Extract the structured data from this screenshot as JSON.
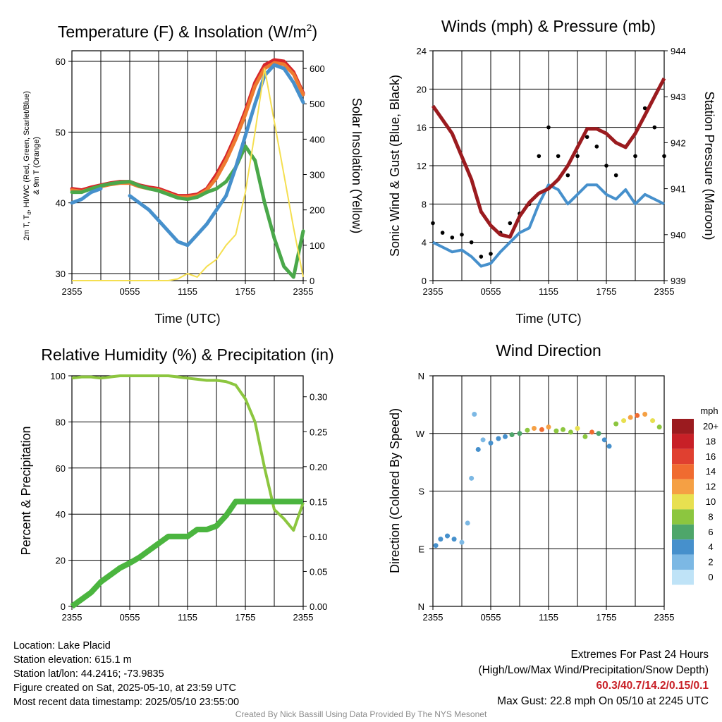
{
  "chart_data": [
    {
      "type": "line",
      "title_html_parts": {
        "main": "Temperature (F) & Insolation (W/m",
        "sup": "2",
        "close": ")"
      },
      "ylabel_left_line1": "2m T, T",
      "ylabel_left_sub": "d",
      "ylabel_left_line1_rest": ", HI/WC (Red, Green, Scarlet/Blue)",
      "ylabel_left_line2": "& 9m T (Orange)",
      "ylabel_right": "Solar Insolation (Yellow)",
      "xlabel": "Time (UTC)",
      "x_ticks": [
        "2355",
        "0555",
        "1155",
        "1755",
        "2355"
      ],
      "ylim": [
        29,
        61.5
      ],
      "yticks_left": [
        30,
        40,
        50,
        60
      ],
      "ylim_right": [
        0,
        650
      ],
      "yticks_right": [
        0,
        100,
        200,
        300,
        400,
        500,
        600
      ],
      "x_hours": [
        0,
        1,
        2,
        3,
        4,
        5,
        6,
        7,
        8,
        9,
        10,
        11,
        12,
        13,
        14,
        15,
        16,
        17,
        18,
        19,
        20,
        21,
        22,
        23,
        24
      ],
      "series": [
        {
          "color": "#d7262b",
          "values": [
            42,
            41.8,
            42.2,
            42.5,
            42.8,
            43,
            43,
            42.5,
            42.2,
            42,
            41.5,
            41,
            41,
            41.2,
            42,
            44,
            46.5,
            49.5,
            53,
            57,
            59.5,
            60.2,
            60,
            58.5,
            55.5
          ]
        },
        {
          "color": "#ee7a30",
          "values": [
            41.8,
            41.6,
            42,
            42.3,
            42.6,
            42.8,
            42.8,
            42.3,
            42,
            41.8,
            41.3,
            40.8,
            40.8,
            41,
            41.8,
            43.5,
            46,
            49,
            52.5,
            56.5,
            59,
            59.8,
            59.6,
            58.2,
            55.3
          ]
        },
        {
          "color": "#4aa84a",
          "values": [
            41.5,
            41.5,
            42,
            42.4,
            42.7,
            42.9,
            43,
            42.4,
            42,
            41.7,
            41.2,
            40.7,
            40.5,
            40.8,
            41.5,
            42,
            43,
            45,
            48,
            46,
            40,
            35,
            31,
            29.5,
            36
          ]
        },
        {
          "color": "#4690cc",
          "values": [
            40,
            40.5,
            41.5,
            42,
            null,
            null,
            41,
            40,
            39,
            37.5,
            36,
            34.5,
            34,
            35.5,
            37,
            39,
            41,
            45,
            49.5,
            54,
            58,
            59.5,
            59,
            57,
            54.2
          ]
        },
        {
          "color": "#f5df50",
          "values_right": [
            0,
            0,
            0,
            0,
            0,
            0,
            0,
            0,
            0,
            0,
            0,
            5,
            20,
            10,
            40,
            60,
            100,
            130,
            250,
            420,
            600,
            450,
            300,
            150,
            10
          ]
        }
      ]
    },
    {
      "type": "line",
      "title": "Winds (mph) & Pressure (mb)",
      "ylabel_left": "Sonic Wind & Gust (Blue, Black)",
      "ylabel_right": "Station Pressure (Maroon)",
      "xlabel": "Time (UTC)",
      "x_ticks": [
        "2355",
        "0555",
        "1155",
        "1755",
        "2355"
      ],
      "ylim": [
        0,
        24
      ],
      "yticks_left": [
        0,
        4,
        8,
        12,
        16,
        20,
        24
      ],
      "ylim_right": [
        939,
        944
      ],
      "yticks_right": [
        939,
        940,
        941,
        942,
        943,
        944
      ],
      "x_hours": [
        0,
        1,
        2,
        3,
        4,
        5,
        6,
        7,
        8,
        9,
        10,
        11,
        12,
        13,
        14,
        15,
        16,
        17,
        18,
        19,
        20,
        21,
        22,
        23,
        24
      ],
      "series": [
        {
          "color": "#4690cc",
          "values": [
            4,
            3.5,
            3,
            3.2,
            2.5,
            1.5,
            1.8,
            3,
            4,
            5,
            5.5,
            8,
            10,
            9.5,
            8,
            9,
            10,
            10,
            9,
            8.5,
            9.5,
            8,
            9,
            8.5,
            8
          ]
        },
        {
          "color": "#000000",
          "values_points": [
            6,
            5,
            4.5,
            4.8,
            4,
            2.5,
            2.8,
            5,
            6,
            7,
            8,
            13,
            16,
            13,
            11,
            13,
            15,
            14,
            12,
            11,
            14,
            13,
            18,
            16,
            13
          ]
        },
        {
          "color": "#9b1b1f",
          "values_right": [
            942.8,
            942.5,
            942.2,
            941.7,
            941.2,
            940.5,
            940.2,
            940,
            939.95,
            940.4,
            940.7,
            940.9,
            941,
            941.2,
            941.5,
            941.9,
            942.3,
            942.3,
            942.2,
            942,
            941.9,
            942.2,
            942.6,
            943,
            943.4
          ]
        }
      ]
    },
    {
      "type": "line",
      "title": "Relative Humidity (%) & Precipitation (in)",
      "ylabel_left": "Percent & Precipitation",
      "xlabel": "",
      "x_ticks": [
        "2355",
        "0555",
        "1155",
        "1755",
        "2355"
      ],
      "ylim": [
        0,
        100
      ],
      "yticks_left": [
        0,
        20,
        40,
        60,
        80,
        100
      ],
      "ylim_right": [
        0,
        0.33
      ],
      "yticks_right": [
        "0.00",
        "0.05",
        "0.10",
        "0.15",
        "0.20",
        "0.25",
        "0.30"
      ],
      "x_hours": [
        0,
        1,
        2,
        3,
        4,
        5,
        6,
        7,
        8,
        9,
        10,
        11,
        12,
        13,
        14,
        15,
        16,
        17,
        18,
        19,
        20,
        21,
        22,
        23,
        24
      ],
      "series": [
        {
          "color": "#8cc63f",
          "values": [
            99,
            99.5,
            99.5,
            99,
            99.5,
            100,
            100,
            100,
            100,
            100,
            100,
            99.5,
            99,
            98.5,
            98,
            98,
            97.5,
            96,
            90,
            80,
            60,
            42,
            38,
            33,
            45
          ]
        },
        {
          "color": "#4bb53f",
          "values_right": [
            0,
            0.01,
            0.02,
            0.035,
            0.045,
            0.055,
            0.062,
            0.07,
            0.08,
            0.09,
            0.1,
            0.1,
            0.1,
            0.11,
            0.11,
            0.115,
            0.13,
            0.15,
            0.15,
            0.15,
            0.15,
            0.15,
            0.15,
            0.15,
            0.15
          ]
        }
      ]
    },
    {
      "type": "scatter",
      "title": "Wind Direction",
      "ylabel_left": "Direction (Colored By Speed)",
      "x_ticks": [
        "2355",
        "0555",
        "1155",
        "1755",
        "2355"
      ],
      "y_ticks": [
        "N",
        "E",
        "S",
        "W",
        "N"
      ],
      "ylim_degrees": [
        0,
        360
      ],
      "legend_title": "mph",
      "legend_labels": [
        "20+",
        "18",
        "16",
        "14",
        "12",
        "10",
        "8",
        "6",
        "4",
        "2",
        "0"
      ],
      "legend_colors": [
        "#9b1b1f",
        "#c82027",
        "#e04030",
        "#f06b30",
        "#f5a044",
        "#e8e050",
        "#8cc63f",
        "#4ea66a",
        "#4690cc",
        "#7cb8e4",
        "#bfe3f7"
      ],
      "points_hour_dir_speed": [
        [
          0.3,
          95,
          3
        ],
        [
          0.8,
          105,
          3
        ],
        [
          1.5,
          110,
          3
        ],
        [
          2.2,
          105,
          3
        ],
        [
          3,
          100,
          2
        ],
        [
          3.6,
          130,
          1
        ],
        [
          4,
          200,
          1
        ],
        [
          4.3,
          300,
          1
        ],
        [
          4.7,
          245,
          3
        ],
        [
          5.2,
          260,
          2
        ],
        [
          6,
          255,
          4
        ],
        [
          6.8,
          262,
          4
        ],
        [
          7.5,
          265,
          4
        ],
        [
          8.2,
          268,
          5
        ],
        [
          9,
          270,
          6
        ],
        [
          9.8,
          275,
          8
        ],
        [
          10.5,
          278,
          12
        ],
        [
          11.3,
          276,
          14
        ],
        [
          12,
          280,
          12
        ],
        [
          12.8,
          274,
          8
        ],
        [
          13.5,
          276,
          8
        ],
        [
          14.3,
          272,
          7
        ],
        [
          15,
          278,
          10
        ],
        [
          15.8,
          265,
          8
        ],
        [
          16.5,
          272,
          14
        ],
        [
          17.2,
          270,
          6
        ],
        [
          17.8,
          260,
          4
        ],
        [
          18.3,
          250,
          3
        ],
        [
          19,
          285,
          8
        ],
        [
          19.8,
          290,
          10
        ],
        [
          20.5,
          295,
          12
        ],
        [
          21.2,
          298,
          14
        ],
        [
          22,
          300,
          12
        ],
        [
          22.8,
          290,
          10
        ],
        [
          23.5,
          280,
          8
        ]
      ]
    }
  ],
  "info": {
    "location": "Location: Lake Placid",
    "elevation": "Station elevation: 615.1 m",
    "latlon": "Station lat/lon: 44.2416; -73.9835",
    "created": "Figure created on Sat, 2025-05-10, at 23:59 UTC",
    "recent": "Most recent data timestamp: 2025/05/10 23:55:00"
  },
  "extremes": {
    "line1": "Extremes For Past 24 Hours",
    "line2": "(High/Low/Max Wind/Precipitation/Snow Depth)",
    "values": "60.3/40.7/14.2/0.15/0.1",
    "gust": "Max Gust: 22.8 mph On 05/10 at 2245 UTC"
  },
  "credit": "Created By Nick Bassill Using Data Provided By The NYS Mesonet"
}
